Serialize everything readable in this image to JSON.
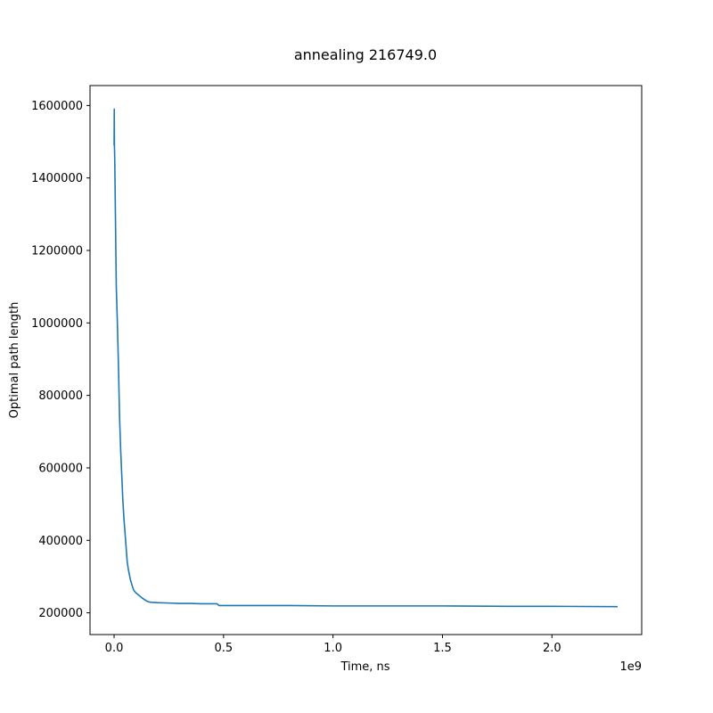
{
  "chart_data": {
    "type": "line",
    "title": "annealing 216749.0",
    "xlabel": "Time, ns",
    "ylabel": "Optimal path length",
    "x_offset_label": "1e9",
    "xlim": [
      -110000000,
      2410000000
    ],
    "ylim": [
      140000,
      1655000
    ],
    "xticks": [
      0.0,
      0.5,
      1.0,
      1.5,
      2.0
    ],
    "xtick_labels": [
      "0.0",
      "0.5",
      "1.0",
      "1.5",
      "2.0"
    ],
    "yticks": [
      200000,
      400000,
      600000,
      800000,
      1000000,
      1200000,
      1400000,
      1600000
    ],
    "ytick_labels": [
      "200000",
      "400000",
      "600000",
      "800000",
      "1000000",
      "1200000",
      "1400000",
      "1600000"
    ],
    "grid": false,
    "series": [
      {
        "color": "#1f77b4",
        "x": [
          0,
          800000,
          1500000,
          3000000,
          6000000,
          10000000,
          15000000,
          20000000,
          25000000,
          30000000,
          35000000,
          40000000,
          45000000,
          50000000,
          55000000,
          60000000,
          65000000,
          70000000,
          75000000,
          80000000,
          85000000,
          90000000,
          100000000,
          110000000,
          120000000,
          130000000,
          140000000,
          150000000,
          160000000,
          170000000,
          200000000,
          250000000,
          300000000,
          350000000,
          400000000,
          470000000,
          480000000,
          600000000,
          800000000,
          1000000000,
          1200000000,
          1500000000,
          1800000000,
          2000000000,
          2300000000
        ],
        "y": [
          1490000,
          1590000,
          1490000,
          1450000,
          1300000,
          1100000,
          1000000,
          880000,
          740000,
          650000,
          580000,
          510000,
          460000,
          420000,
          380000,
          340000,
          320000,
          305000,
          290000,
          280000,
          270000,
          262000,
          255000,
          250000,
          245000,
          240000,
          236000,
          232000,
          230000,
          229000,
          228000,
          227000,
          226000,
          226000,
          225000,
          225000,
          220000,
          220000,
          220000,
          219000,
          219000,
          219000,
          218000,
          218000,
          217000
        ]
      }
    ]
  }
}
